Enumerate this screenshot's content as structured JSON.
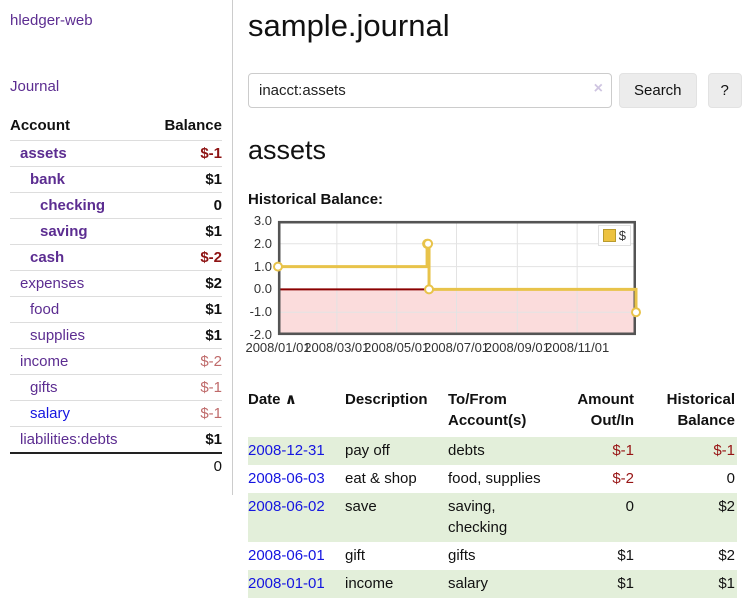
{
  "app": {
    "brand": "hledger-web",
    "nav_journal": "Journal"
  },
  "sidebar": {
    "header": {
      "account": "Account",
      "balance": "Balance"
    },
    "rows": [
      {
        "name": "assets",
        "balance": "$-1",
        "level": 1,
        "bold": true,
        "amount_class": "neg"
      },
      {
        "name": "bank",
        "balance": "$1",
        "level": 2,
        "bold": true,
        "amount_class": ""
      },
      {
        "name": "checking",
        "balance": "0",
        "level": 3,
        "bold": true,
        "amount_class": ""
      },
      {
        "name": "saving",
        "balance": "$1",
        "level": 3,
        "bold": true,
        "amount_class": ""
      },
      {
        "name": "cash",
        "balance": "$-2",
        "level": 2,
        "bold": true,
        "amount_class": "neg"
      },
      {
        "name": "expenses",
        "balance": "$2",
        "level": 1,
        "bold": false,
        "amount_class": ""
      },
      {
        "name": "food",
        "balance": "$1",
        "level": 2,
        "bold": false,
        "amount_class": ""
      },
      {
        "name": "supplies",
        "balance": "$1",
        "level": 2,
        "bold": false,
        "amount_class": ""
      },
      {
        "name": "income",
        "balance": "$-2",
        "level": 1,
        "bold": false,
        "amount_class": "negl"
      },
      {
        "name": "gifts",
        "balance": "$-1",
        "level": 2,
        "bold": false,
        "amount_class": "negl"
      },
      {
        "name": "salary",
        "balance": "$-1",
        "level": 2,
        "bold": false,
        "amount_class": "negl",
        "blue": true
      },
      {
        "name": "liabilities:debts",
        "balance": "$1",
        "level": 1,
        "bold": false,
        "amount_class": ""
      }
    ],
    "total": "0"
  },
  "main": {
    "title": "sample.journal",
    "search": {
      "value": "inacct:assets",
      "clear_icon": "×",
      "button": "Search",
      "help_button": "?"
    },
    "account_heading": "assets",
    "chart_label": "Historical Balance:"
  },
  "chart_data": {
    "type": "line",
    "title": "Historical Balance:",
    "step": true,
    "xlim": [
      "2008/01/01",
      "2008/12/31"
    ],
    "ylim": [
      -2,
      3
    ],
    "yticks": [
      {
        "v": 3,
        "label": "3.0"
      },
      {
        "v": 2,
        "label": "2.0"
      },
      {
        "v": 1,
        "label": "1.0"
      },
      {
        "v": 0,
        "label": "0.0"
      },
      {
        "v": -1,
        "label": "-1.0"
      },
      {
        "v": -2,
        "label": "-2.0"
      }
    ],
    "xticks": [
      {
        "date": "2008/01/01",
        "label": "2008/01/01"
      },
      {
        "date": "2008/03/01",
        "label": "2008/03/01"
      },
      {
        "date": "2008/05/01",
        "label": "2008/05/01"
      },
      {
        "date": "2008/07/01",
        "label": "2008/07/01"
      },
      {
        "date": "2008/09/01",
        "label": "2008/09/01"
      },
      {
        "date": "2008/11/01",
        "label": "2008/11/01"
      }
    ],
    "series": [
      {
        "name": "$",
        "color": "#e8c34a",
        "points": [
          {
            "date": "2008-01-01",
            "value": 1
          },
          {
            "date": "2008-06-01",
            "value": 2
          },
          {
            "date": "2008-06-02",
            "value": 2
          },
          {
            "date": "2008-06-03",
            "value": 0
          },
          {
            "date": "2008-12-31",
            "value": -1
          }
        ]
      }
    ],
    "legend_position": "top-right",
    "grid": true,
    "gridline_color": "#e3e3e3",
    "border_color": "#545454",
    "zero_line_color": "#8b0000",
    "negative_region_color": "#fbdcdc"
  },
  "register": {
    "columns": [
      {
        "label": "Date",
        "sort_icon": "∧"
      },
      {
        "label": "Description"
      },
      {
        "label": "To/From Account(s)"
      },
      {
        "label": "Amount Out/In"
      },
      {
        "label": "Historical Balance"
      }
    ],
    "rows": [
      {
        "date": "2008-12-31",
        "description": "pay off",
        "accounts": "debts",
        "amount": "$-1",
        "amount_class": "neg",
        "balance": "$-1",
        "balance_class": "neg"
      },
      {
        "date": "2008-06-03",
        "description": "eat & shop",
        "accounts": "food, supplies",
        "amount": "$-2",
        "amount_class": "neg",
        "balance": "0",
        "balance_class": ""
      },
      {
        "date": "2008-06-02",
        "description": "save",
        "accounts": "saving, checking",
        "amount": "0",
        "amount_class": "",
        "balance": "$2",
        "balance_class": ""
      },
      {
        "date": "2008-06-01",
        "description": "gift",
        "accounts": "gifts",
        "amount": "$1",
        "amount_class": "",
        "balance": "$2",
        "balance_class": ""
      },
      {
        "date": "2008-01-01",
        "description": "income",
        "accounts": "salary",
        "amount": "$1",
        "amount_class": "",
        "balance": "$1",
        "balance_class": ""
      }
    ]
  }
}
